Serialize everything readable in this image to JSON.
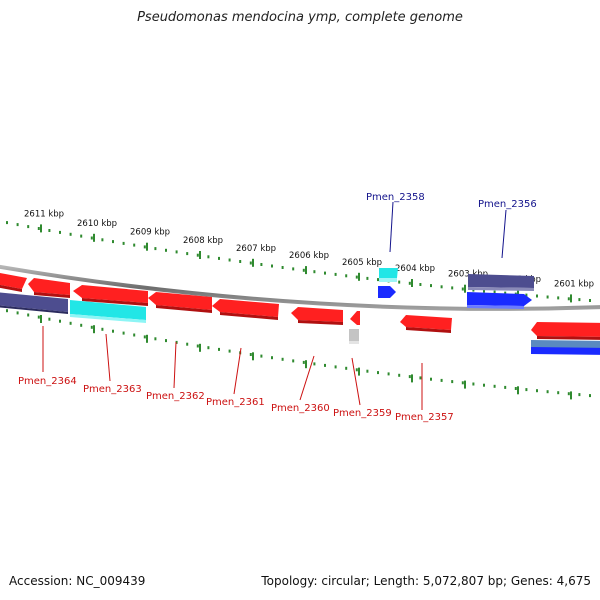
{
  "title": "Pseudomonas mendocina ymp, complete genome",
  "footer": {
    "accession": "Accession: NC_009439",
    "topology": "Topology: circular; Length: 5,072,807 bp; Genes: 4,675"
  },
  "colors": {
    "backbone": "#8c8c8c",
    "tick": "#2f8a2f",
    "gene_red": "#ff1a1a",
    "gene_cyan": "#22e6e6",
    "gene_navy": "#4a4a8a",
    "gene_blue": "#1a2aff",
    "gene_gray": "#c8c8c8",
    "gene_steel": "#5a8ac0",
    "label_red": "#cc1111",
    "label_blue": "#14148c"
  },
  "ticks": [
    {
      "label": "2611 kbp",
      "major": true
    },
    {
      "label": "2610 kbp",
      "major": true
    },
    {
      "label": "2609 kbp",
      "major": true
    },
    {
      "label": "2608 kbp",
      "major": true
    },
    {
      "label": "2607 kbp",
      "major": true
    },
    {
      "label": "2606 kbp",
      "major": true
    },
    {
      "label": "2605 kbp",
      "major": true
    },
    {
      "label": "2604 kbp",
      "major": true
    },
    {
      "label": "2603 kbp",
      "major": true
    },
    {
      "label": "2602 kbp",
      "major": true
    },
    {
      "label": "2601 kbp",
      "major": true
    }
  ],
  "genes": [
    {
      "name": "",
      "strand": "+",
      "color": "gene_red",
      "start_kb": 2611.8,
      "end_kb": 2611.25,
      "dir": "left"
    },
    {
      "name": "",
      "strand": "+",
      "color": "gene_red",
      "start_kb": 2611.15,
      "end_kb": 2610.55,
      "dir": "left"
    },
    {
      "name": "",
      "strand": "+",
      "color": "gene_red",
      "start_kb": 2610.45,
      "end_kb": 2609.1,
      "dir": "left"
    },
    {
      "name": "",
      "strand": "+",
      "color": "gene_red",
      "start_kb": 2609.05,
      "end_kb": 2607.95,
      "dir": "left"
    },
    {
      "name": "",
      "strand": "+",
      "color": "gene_red",
      "start_kb": 2607.9,
      "end_kb": 2606.7,
      "dir": "left"
    },
    {
      "name": "",
      "strand": "+",
      "color": "gene_red",
      "start_kb": 2606.35,
      "end_kb": 2605.4,
      "dir": "left"
    },
    {
      "name": "",
      "strand": "+",
      "color": "gene_red",
      "start_kb": 2605.2,
      "end_kb": 2605.05,
      "dir": "left"
    },
    {
      "name": "",
      "strand": "+",
      "color": "gene_red",
      "start_kb": 2604.0,
      "end_kb": 2603.1,
      "dir": "left"
    },
    {
      "name": "",
      "strand": "+",
      "color": "gene_red",
      "start_kb": 2601.3,
      "end_kb": 2600.0,
      "dir": "left"
    }
  ],
  "gene_labels_bottom": [
    {
      "text": "Pmen_2364"
    },
    {
      "text": "Pmen_2363"
    },
    {
      "text": "Pmen_2362"
    },
    {
      "text": "Pmen_2361"
    },
    {
      "text": "Pmen_2360"
    },
    {
      "text": "Pmen_2359"
    },
    {
      "text": "Pmen_2357"
    }
  ],
  "gene_labels_top": [
    {
      "text": "Pmen_2358"
    },
    {
      "text": "Pmen_2356"
    }
  ]
}
